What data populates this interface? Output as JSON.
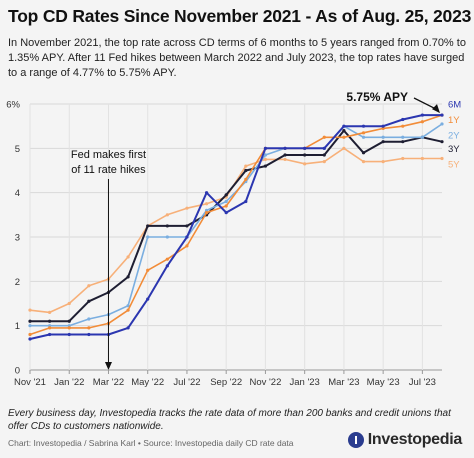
{
  "title": "Top CD Rates Since November 2021 - As of Aug. 25, 2023",
  "subtitle": "In November 2021, the top rate across CD terms of 6 months to 5 years ranged from 0.70% to 1.35% APY. After 11 Fed hikes between March 2022 and July 2023, the top rates have surged to a range of 4.77% to 5.75% APY.",
  "footnote": "Every business day, Investopedia tracks the rate data of more than 200 banks and credit unions that offer CDs to customers nationwide.",
  "credit": "Chart: Investopedia / Sabrina Karl • Source: Investopedia daily CD rate data",
  "logo_text": "Investopedia",
  "chart_data": {
    "type": "line",
    "x": [
      "Nov '21",
      "Dec '21",
      "Jan '22",
      "Feb '22",
      "Mar '22",
      "Apr '22",
      "May '22",
      "Jun '22",
      "Jul '22",
      "Aug '22",
      "Sep '22",
      "Oct '22",
      "Nov '22",
      "Dec '22",
      "Jan '23",
      "Feb '23",
      "Mar '23",
      "Apr '23",
      "May '23",
      "Jun '23",
      "Jul '23",
      "Aug '23"
    ],
    "x_tick_labels": [
      "Nov '21",
      "Jan '22",
      "Mar '22",
      "May '22",
      "Jul '22",
      "Sep '22",
      "Nov '22",
      "Jan '23",
      "Mar '23",
      "May '23",
      "Jul '23"
    ],
    "ylim": [
      0,
      6
    ],
    "y_ticks": [
      "0",
      "1",
      "2",
      "3",
      "4",
      "5",
      "6%"
    ],
    "series": [
      {
        "name": "6M",
        "color": "#2b36b0",
        "values": [
          0.7,
          0.8,
          0.8,
          0.8,
          0.8,
          0.95,
          1.6,
          2.35,
          3.0,
          4.0,
          3.55,
          3.8,
          5.0,
          5.0,
          5.0,
          5.0,
          5.5,
          5.5,
          5.5,
          5.65,
          5.75,
          5.75
        ]
      },
      {
        "name": "1Y",
        "color": "#f28c38",
        "values": [
          0.8,
          0.95,
          0.95,
          0.95,
          1.05,
          1.35,
          2.25,
          2.5,
          2.8,
          3.55,
          3.7,
          4.3,
          5.0,
          5.0,
          5.0,
          5.25,
          5.25,
          5.35,
          5.45,
          5.5,
          5.6,
          5.75
        ]
      },
      {
        "name": "2Y",
        "color": "#7aaee0",
        "values": [
          1.0,
          1.0,
          1.0,
          1.15,
          1.25,
          1.45,
          3.0,
          3.0,
          3.0,
          3.6,
          3.8,
          4.25,
          4.85,
          5.0,
          5.0,
          5.0,
          5.5,
          5.25,
          5.25,
          5.25,
          5.25,
          5.55
        ]
      },
      {
        "name": "3Y",
        "color": "#1e1e32",
        "values": [
          1.1,
          1.1,
          1.1,
          1.55,
          1.75,
          2.1,
          3.25,
          3.25,
          3.25,
          3.5,
          3.95,
          4.5,
          4.6,
          4.85,
          4.85,
          4.85,
          5.4,
          4.9,
          5.15,
          5.15,
          5.25,
          5.15
        ]
      },
      {
        "name": "5Y",
        "color": "#f7b079",
        "values": [
          1.35,
          1.3,
          1.5,
          1.9,
          2.05,
          2.55,
          3.25,
          3.5,
          3.65,
          3.75,
          3.9,
          4.6,
          4.75,
          4.75,
          4.65,
          4.7,
          5.0,
          4.7,
          4.7,
          4.77,
          4.77,
          4.77
        ]
      }
    ],
    "annotations": [
      {
        "text": "Fed makes first of 11 rate hikes",
        "x": "Mar '22"
      },
      {
        "text": "5.75% APY",
        "x": "Aug '23",
        "y": 5.75
      }
    ],
    "grid": true,
    "legend": "right, at line ends"
  }
}
